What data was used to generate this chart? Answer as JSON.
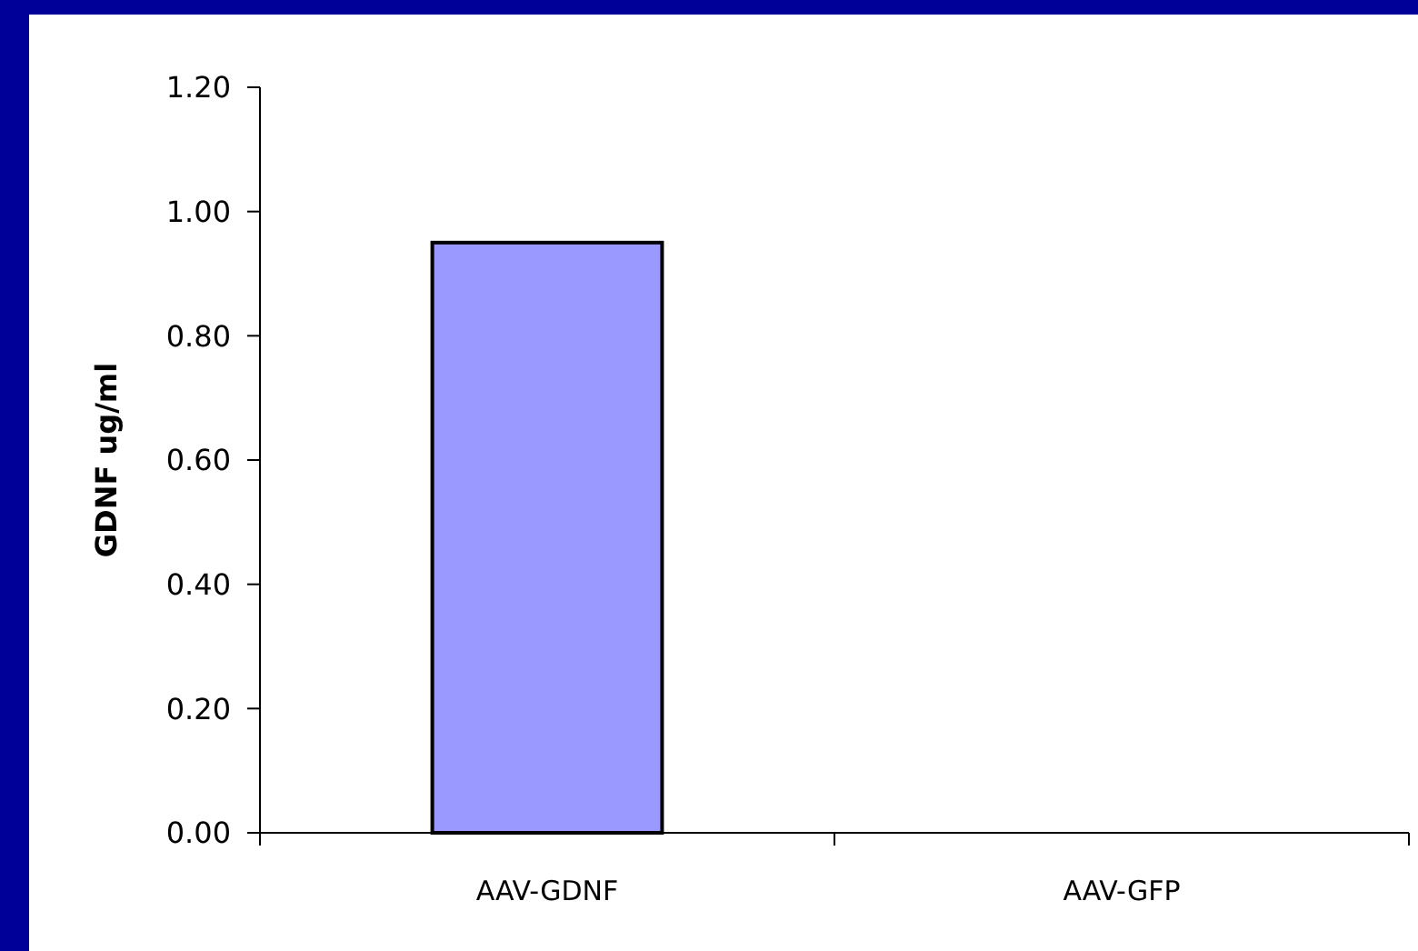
{
  "chart_data": {
    "type": "bar",
    "ylabel": "GDNF ug/ml",
    "categories": [
      "AAV-GDNF",
      "AAV-GFP"
    ],
    "values": [
      0.95,
      0
    ],
    "color": "#9999ff",
    "ylim": [
      0,
      1.2
    ],
    "yticks": [
      {
        "value": 0,
        "label": "0.00"
      },
      {
        "value": 0.2,
        "label": "0.20"
      },
      {
        "value": 0.4,
        "label": "0.40"
      },
      {
        "value": 0.6,
        "label": "0.60"
      },
      {
        "value": 0.8,
        "label": "0.80"
      },
      {
        "value": 1,
        "label": "1.00"
      },
      {
        "value": 1.2,
        "label": "1.20"
      }
    ],
    "grid": false
  }
}
